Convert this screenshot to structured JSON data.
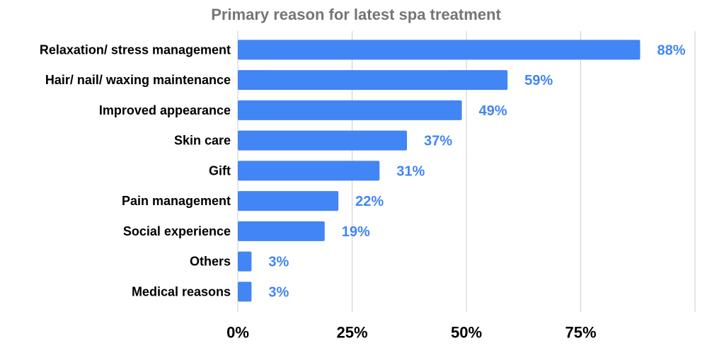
{
  "chart_data": {
    "type": "bar",
    "orientation": "horizontal",
    "title": "Primary reason for latest spa treatment",
    "xlabel": "",
    "ylabel": "",
    "categories": [
      "Relaxation/ stress management",
      "Hair/ nail/ waxing maintenance",
      "Improved appearance",
      "Skin care",
      "Gift",
      "Pain management",
      "Social experience",
      "Others",
      "Medical reasons"
    ],
    "values": [
      88,
      59,
      49,
      37,
      31,
      22,
      19,
      3,
      3
    ],
    "value_labels": [
      "88%",
      "59%",
      "49%",
      "37%",
      "31%",
      "22%",
      "19%",
      "3%",
      "3%"
    ],
    "xlim": [
      0,
      100
    ],
    "xticks": [
      0,
      25,
      50,
      75
    ],
    "xtick_labels": [
      "0%",
      "25%",
      "50%",
      "75%"
    ],
    "grid": true,
    "legend": "none",
    "colors": {
      "bar": "#4285f4",
      "value_label": "#4285f4",
      "title": "#757575",
      "grid": "#cccccc"
    }
  }
}
